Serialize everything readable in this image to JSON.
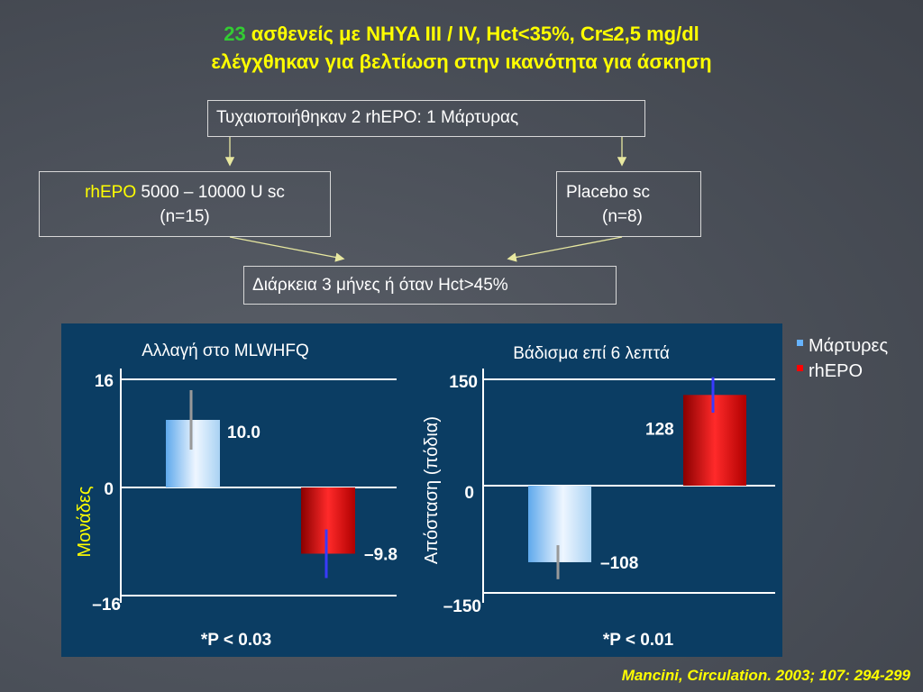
{
  "header": {
    "line1_num": "23",
    "line1_rest": " ασθενείς με NHYA III / IV, Hct<35%, Cr≤2,5 mg/dl",
    "line2": "ελέγχθηκαν για βελτίωση στην ικανότητα για άσκηση"
  },
  "flow": {
    "randomized": "Τυχαιοποιήθηκαν  2 rhEPO: 1 Μάρτυρας",
    "rhepo_label": "rhEPO",
    "rhepo_dose": " 5000 – 10000 U sc",
    "rhepo_n": "(n=15)",
    "placebo_label": "Placebo sc",
    "placebo_n": "(n=8)",
    "duration": "Διάρκεια 3 μήνες ή όταν Hct>45%"
  },
  "colors": {
    "panel_bg": "#0b3d63",
    "control_bar": "#b9dcf5",
    "rhepo_bar": "#c00000",
    "yellow": "#ffff00",
    "green": "#33cc33"
  },
  "legend": {
    "control": "Μάρτυρες",
    "rhepo": "rhEPO",
    "control_color": "#66b3ff",
    "rhepo_color": "#ff0000"
  },
  "chart_data": [
    {
      "type": "bar",
      "title": "Αλλαγή στο MLWHFQ",
      "ylabel": "Μονάδες",
      "ylim": [
        -16,
        16
      ],
      "yticks": [
        "16",
        "0",
        "–16"
      ],
      "series": [
        {
          "name": "Μάρτυρες",
          "value": 10.0,
          "label": "10.0",
          "err": 4.4
        },
        {
          "name": "rhEPO",
          "value": -9.8,
          "label": "–9.8",
          "err": 3.6
        }
      ],
      "pvalue": "*P < 0.03"
    },
    {
      "type": "bar",
      "title": "Βάδισμα επί 6 λεπτά",
      "ylabel": "Απόσταση (πόδια)",
      "ylim": [
        -150,
        150
      ],
      "yticks": [
        "150",
        "0",
        "–150"
      ],
      "series": [
        {
          "name": "Μάρτυρες",
          "value": -108,
          "label": "–108",
          "err": 24
        },
        {
          "name": "rhEPO",
          "value": 128,
          "label": "128",
          "err": 25
        }
      ],
      "pvalue": "*P < 0.01"
    }
  ],
  "citation": "Mancini, Circulation. 2003; 107: 294-299"
}
